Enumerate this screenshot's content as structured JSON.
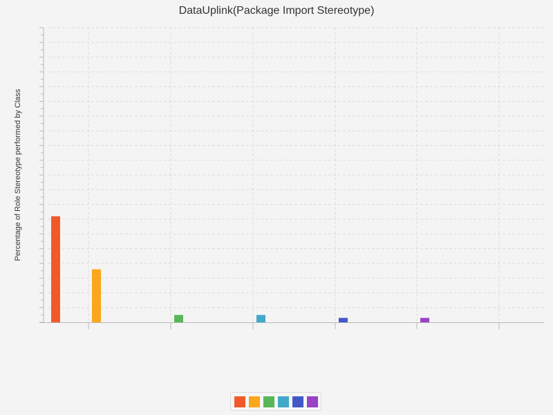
{
  "chart_data": {
    "type": "bar",
    "title": "DataUplink(Package Import Stereotype)",
    "xlabel": "",
    "ylabel": "Percentage of Role Stereotype performed by Class",
    "categories": [
      "",
      "",
      "",
      "",
      "",
      ""
    ],
    "values": [
      36,
      18,
      2.5,
      2.5,
      1.5,
      1.5
    ],
    "ylim": [
      0,
      100
    ],
    "grid": true,
    "legend": "bottom-center",
    "colors": [
      "#f05a28",
      "#fba71b",
      "#57b757",
      "#41a9c9",
      "#4258c9",
      "#9a42c8"
    ]
  }
}
